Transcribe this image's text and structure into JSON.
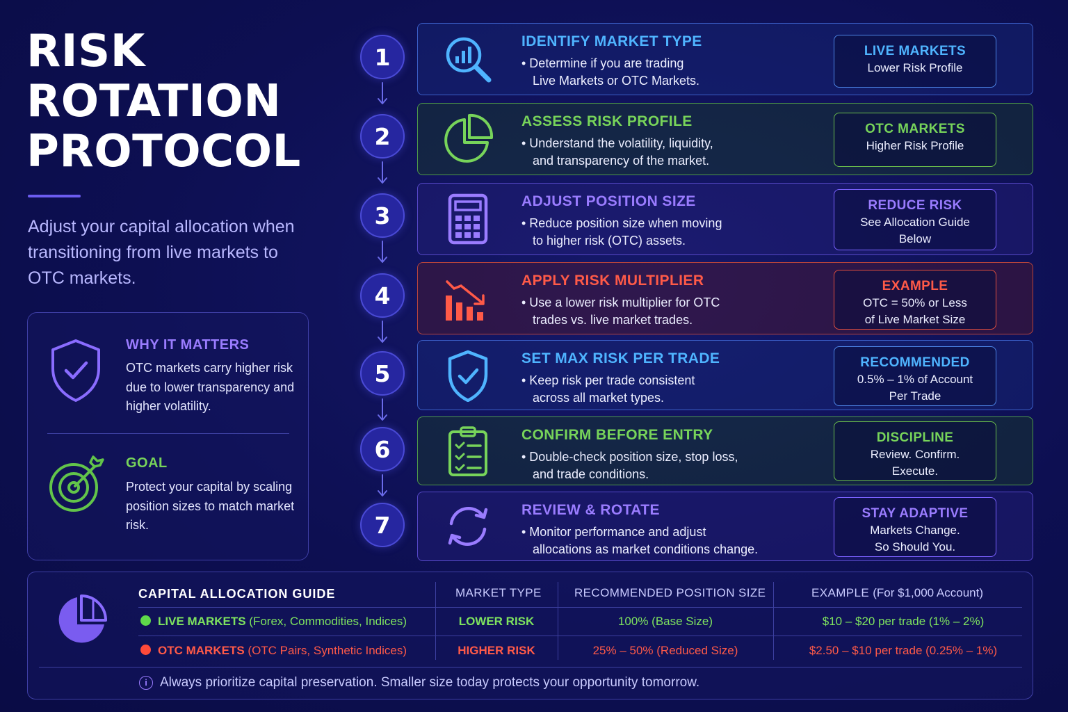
{
  "header": {
    "title_lines": [
      "RISK",
      "ROTATION",
      "PROTOCOL"
    ],
    "subtitle": "Adjust your capital allocation when transitioning from live markets to OTC markets."
  },
  "why_it_matters": {
    "title": "WHY IT MATTERS",
    "text": "OTC markets carry higher risk due to lower transparency and higher volatility.",
    "icon": "shield-check-icon"
  },
  "goal": {
    "title": "GOAL",
    "text": "Protect your capital by scaling position sizes to match market risk.",
    "icon": "target-arrow-icon"
  },
  "steps": [
    {
      "num": "1",
      "title": "IDENTIFY MARKET TYPE",
      "desc1": "• Determine if you are trading",
      "desc2": "Live Markets or OTC Markets.",
      "tag_title": "LIVE MARKETS",
      "tag_lines": [
        "Lower Risk Profile"
      ],
      "icon": "magnifier-chart-icon",
      "theme": "blue"
    },
    {
      "num": "2",
      "title": "ASSESS RISK PROFILE",
      "desc1": "• Understand the volatility, liquidity,",
      "desc2": "and transparency of the market.",
      "tag_title": "OTC MARKETS",
      "tag_lines": [
        "Higher Risk Profile"
      ],
      "icon": "pie-chart-icon",
      "theme": "green"
    },
    {
      "num": "3",
      "title": "ADJUST POSITION SIZE",
      "desc1": "• Reduce position size when moving",
      "desc2": "to higher risk (OTC) assets.",
      "tag_title": "REDUCE RISK",
      "tag_lines": [
        "See Allocation Guide",
        "Below"
      ],
      "icon": "calculator-icon",
      "theme": "purple"
    },
    {
      "num": "4",
      "title": "APPLY RISK MULTIPLIER",
      "desc1": "• Use a lower risk multiplier for OTC",
      "desc2": "trades vs. live market trades.",
      "tag_title": "EXAMPLE",
      "tag_lines": [
        "OTC = 50% or Less",
        "of Live Market Size"
      ],
      "icon": "declining-bars-icon",
      "theme": "red"
    },
    {
      "num": "5",
      "title": "SET MAX RISK PER TRADE",
      "desc1": "• Keep risk per trade consistent",
      "desc2": "across all market types.",
      "tag_title": "RECOMMENDED",
      "tag_lines": [
        "0.5% – 1% of Account",
        "Per Trade"
      ],
      "icon": "shield-check-icon",
      "theme": "blue"
    },
    {
      "num": "6",
      "title": "CONFIRM BEFORE ENTRY",
      "desc1": "• Double-check position size, stop loss,",
      "desc2": "and trade conditions.",
      "tag_title": "DISCIPLINE",
      "tag_lines": [
        "Review. Confirm.",
        "Execute."
      ],
      "icon": "clipboard-checklist-icon",
      "theme": "green"
    },
    {
      "num": "7",
      "title": "REVIEW & ROTATE",
      "desc1": "• Monitor performance and adjust",
      "desc2": "allocations as market conditions change.",
      "tag_title": "STAY ADAPTIVE",
      "tag_lines": [
        "Markets Change.",
        "So Should You."
      ],
      "icon": "rotate-arrows-icon",
      "theme": "purple"
    }
  ],
  "guide": {
    "title": "CAPITAL ALLOCATION GUIDE",
    "headers": [
      "MARKET TYPE",
      "RECOMMENDED POSITION SIZE",
      "EXAMPLE"
    ],
    "example_suffix": "(For $1,000 Account)",
    "rows": [
      {
        "name": "LIVE MARKETS",
        "detail": "(Forex, Commodities, Indices)",
        "market_type": "LOWER RISK",
        "position_size": "100% (Base Size)",
        "example": "$10 – $20 per trade (1% – 2%)",
        "color": "#5fd94a",
        "text_color": "#7ee35f"
      },
      {
        "name": "OTC MARKETS",
        "detail": "(OTC Pairs, Synthetic Indices)",
        "market_type": "HIGHER RISK",
        "position_size": "25% – 50% (Reduced Size)",
        "example": "$2.50 – $10 per trade (0.25% – 1%)",
        "color": "#ff4a3a",
        "text_color": "#ff5a48"
      }
    ],
    "note": "Always prioritize capital preservation. Smaller size today protects your opportunity tomorrow."
  }
}
